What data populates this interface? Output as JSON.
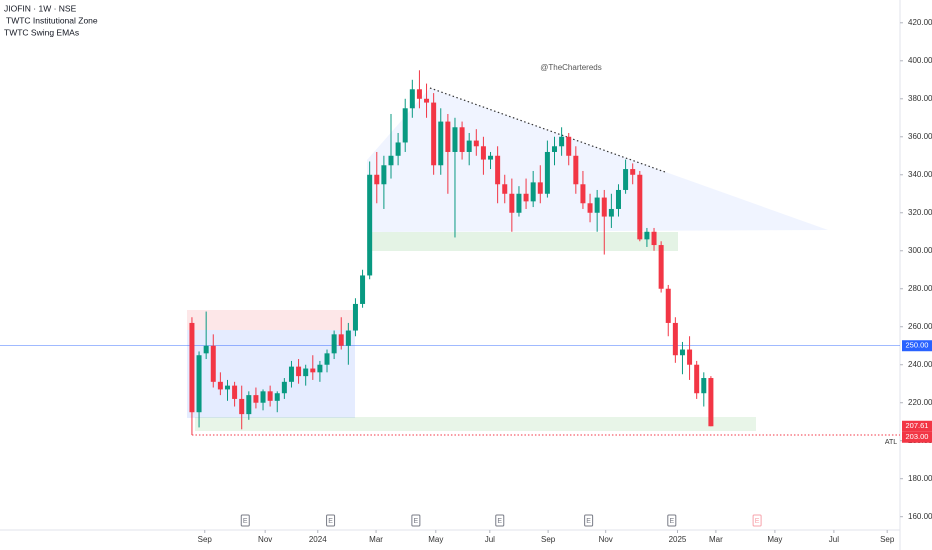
{
  "header": {
    "symbol": "JIOFIN · 1W · NSE",
    "indicators": [
      "TWTC Institutional Zone",
      "TWTC Swing EMAs"
    ]
  },
  "watermark": "@TheChartereds",
  "chart_data": {
    "type": "candlestick",
    "up_color": "#089981",
    "down_color": "#f23645",
    "series": {
      "open": [
        262,
        215,
        246,
        250,
        231,
        227,
        229,
        222,
        214,
        224,
        220,
        226,
        221,
        225,
        231,
        239,
        234,
        238,
        236,
        240,
        246,
        256,
        250,
        258,
        272,
        287,
        340,
        335,
        345,
        350,
        357,
        375,
        385,
        380,
        378,
        345,
        368,
        352,
        365,
        352,
        358,
        355,
        348,
        350,
        335,
        330,
        320,
        330,
        326,
        336,
        330,
        352,
        355,
        360,
        350,
        335,
        325,
        320,
        328,
        318,
        322,
        332,
        343,
        340,
        306,
        310,
        303,
        280,
        262,
        245,
        248,
        240,
        225,
        233
      ],
      "high": [
        265,
        247,
        268,
        256,
        236,
        232,
        231,
        229,
        226,
        228,
        227,
        229,
        226,
        233,
        242,
        243,
        240,
        245,
        242,
        248,
        258,
        265,
        262,
        275,
        290,
        347,
        352,
        350,
        372,
        362,
        380,
        390,
        395,
        388,
        383,
        375,
        372,
        370,
        368,
        362,
        364,
        360,
        352,
        355,
        340,
        338,
        334,
        338,
        342,
        345,
        358,
        360,
        365,
        362,
        355,
        342,
        330,
        332,
        332,
        330,
        335,
        348,
        346,
        342,
        312,
        312,
        305,
        282,
        265,
        252,
        255,
        242,
        236,
        234
      ],
      "low": [
        203,
        207,
        243,
        228,
        224,
        221,
        218,
        206,
        211,
        217,
        216,
        218,
        215,
        222,
        228,
        230,
        229,
        232,
        231,
        236,
        243,
        248,
        240,
        255,
        270,
        285,
        325,
        322,
        338,
        345,
        352,
        370,
        375,
        370,
        340,
        340,
        330,
        307,
        348,
        345,
        350,
        340,
        343,
        325,
        325,
        310,
        318,
        322,
        323,
        325,
        328,
        345,
        350,
        345,
        330,
        322,
        315,
        310,
        298,
        312,
        318,
        330,
        335,
        305,
        302,
        300,
        278,
        255,
        241,
        235,
        232,
        222,
        218,
        207.61
      ],
      "close": [
        215,
        245,
        250,
        231,
        227,
        229,
        222,
        214,
        224,
        220,
        226,
        221,
        225,
        231,
        239,
        234,
        238,
        236,
        240,
        246,
        256,
        250,
        258,
        272,
        287,
        340,
        335,
        345,
        350,
        357,
        375,
        385,
        380,
        378,
        345,
        368,
        352,
        365,
        352,
        358,
        355,
        348,
        350,
        335,
        330,
        320,
        330,
        326,
        336,
        330,
        352,
        355,
        360,
        350,
        335,
        325,
        320,
        328,
        318,
        322,
        332,
        343,
        340,
        306,
        310,
        303,
        280,
        262,
        245,
        248,
        240,
        225,
        233,
        207.61
      ]
    },
    "xlim": [
      -27,
      99.6
    ],
    "xticks": [
      {
        "value": 1.8,
        "label": "Sep"
      },
      {
        "value": 10.3,
        "label": "Nov"
      },
      {
        "value": 17.7,
        "label": "2024"
      },
      {
        "value": 25.9,
        "label": "Mar"
      },
      {
        "value": 34.3,
        "label": "May"
      },
      {
        "value": 41.9,
        "label": "Jul"
      },
      {
        "value": 50.1,
        "label": "Sep"
      },
      {
        "value": 58.2,
        "label": "Nov"
      },
      {
        "value": 68.3,
        "label": "2025"
      },
      {
        "value": 73.7,
        "label": "Mar"
      },
      {
        "value": 82.0,
        "label": "May"
      },
      {
        "value": 90.3,
        "label": "Jul"
      },
      {
        "value": 97.8,
        "label": "Sep"
      }
    ],
    "ylim": [
      153,
      432
    ],
    "yticks": [
      {
        "value": 160,
        "label": "160.00"
      },
      {
        "value": 180,
        "label": "180.00"
      },
      {
        "value": 200,
        "label": "200.00"
      },
      {
        "value": 220,
        "label": "220.00"
      },
      {
        "value": 240,
        "label": "240.00"
      },
      {
        "value": 260,
        "label": "260.00"
      },
      {
        "value": 280,
        "label": "280.00"
      },
      {
        "value": 300,
        "label": "300.00"
      },
      {
        "value": 320,
        "label": "320.00"
      },
      {
        "value": 340,
        "label": "340.00"
      },
      {
        "value": 360,
        "label": "360.00"
      },
      {
        "value": 380,
        "label": "380.00"
      },
      {
        "value": 400,
        "label": "400.00"
      },
      {
        "value": 420,
        "label": "420.00"
      }
    ],
    "price_lines": [
      {
        "value": 250,
        "label": "250.00",
        "color": "#2962ff",
        "style": "solid"
      },
      {
        "value": 207.61,
        "label": "207.61",
        "color": "#f23645",
        "style": "none"
      },
      {
        "value": 203,
        "label": "203.00",
        "color": "#f23645",
        "style": "dotted"
      }
    ],
    "atl_label": "ATL",
    "earnings": {
      "label": "E",
      "x": [
        7.5,
        19.5,
        31.5,
        43.3,
        55.8,
        67.5,
        79.5
      ]
    }
  }
}
